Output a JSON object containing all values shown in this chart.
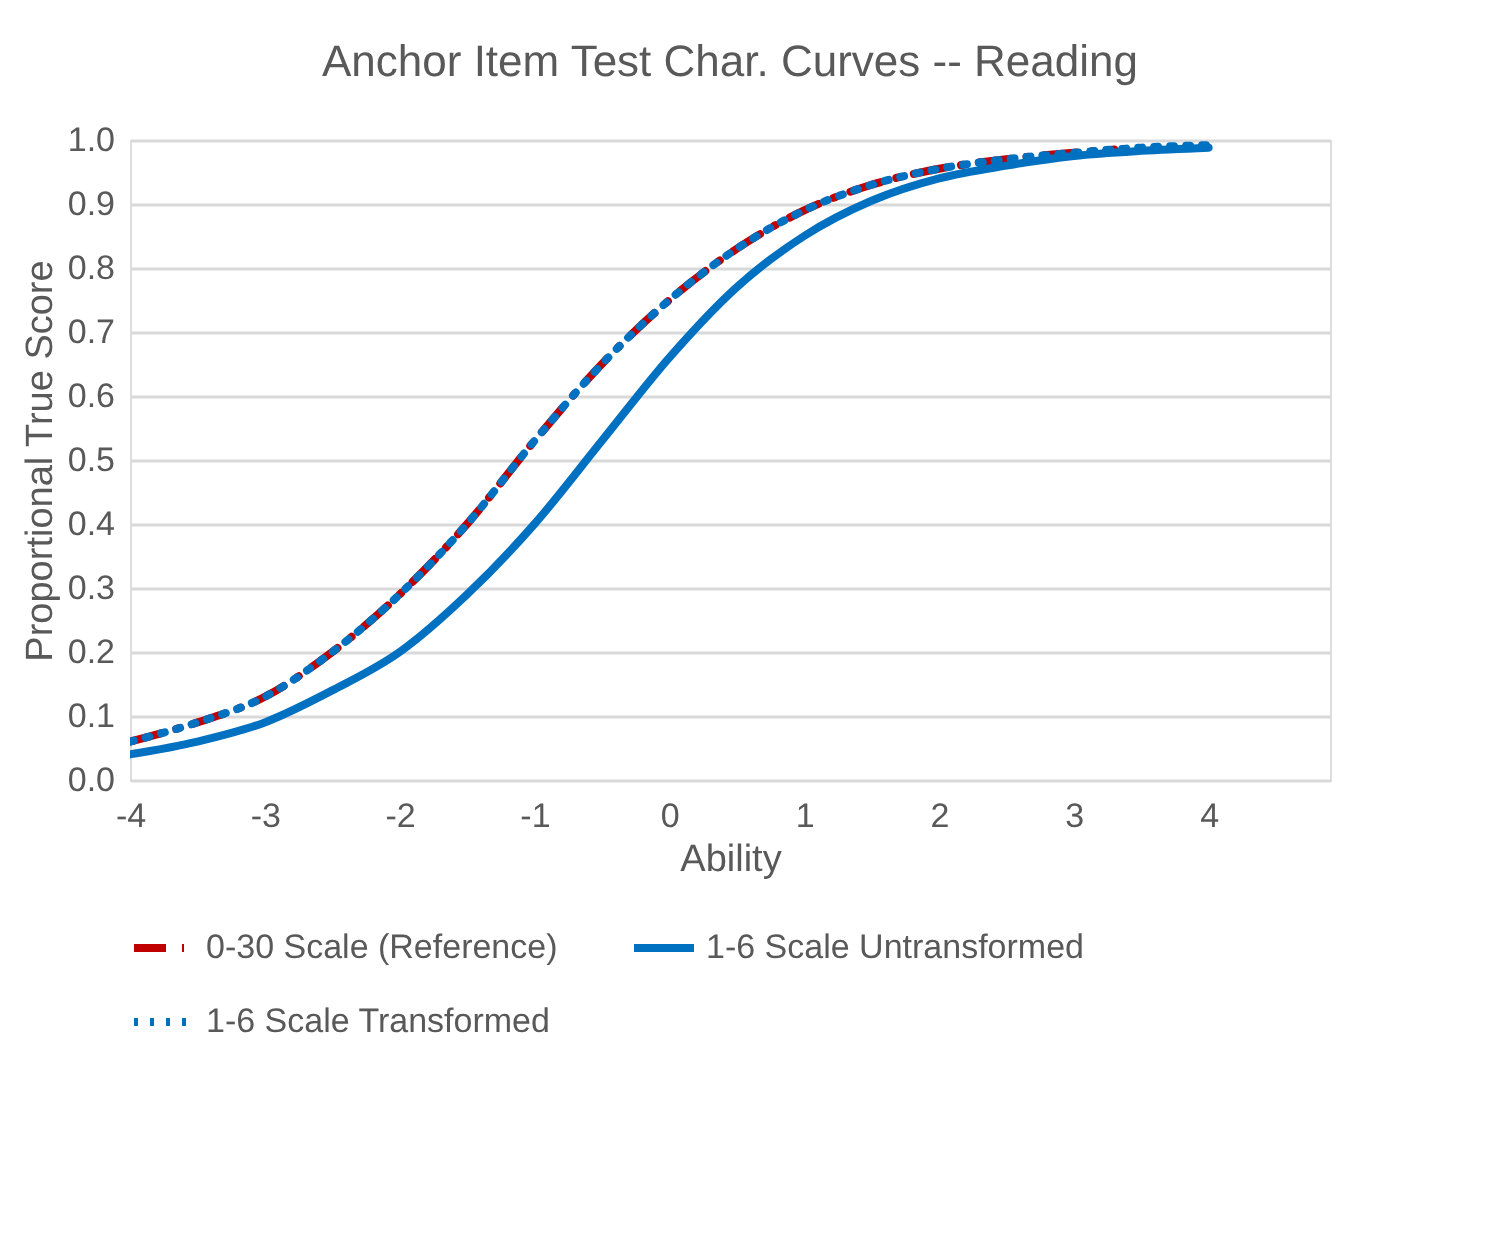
{
  "chart_data": {
    "type": "line",
    "title": "Anchor Item Test Char. Curves -- Reading",
    "xlabel": "Ability",
    "ylabel": "Proportional True Score",
    "xlim": [
      -4,
      4.9
    ],
    "xticks": [
      -4,
      -3,
      -2,
      -1,
      0,
      1,
      2,
      3,
      4
    ],
    "ylim": [
      0,
      1
    ],
    "yticks": [
      {
        "value": 0,
        "label": "0.0"
      },
      0.1,
      0.2,
      0.3,
      0.4,
      0.5,
      0.6,
      0.7,
      0.8,
      0.9,
      {
        "value": 1,
        "label": "1.0"
      }
    ],
    "grid": "y",
    "legend": "bottom",
    "series": [
      {
        "name": "0-30 Scale (Reference)",
        "color": "#c00000",
        "line_style": "dashed",
        "x": [
          -4,
          -3.5,
          -3,
          -2.5,
          -2,
          -1.5,
          -1,
          -0.5,
          0,
          0.5,
          1,
          1.5,
          2,
          2.5,
          3,
          3.3
        ],
        "values": [
          0.06,
          0.09,
          0.13,
          0.2,
          0.29,
          0.4,
          0.53,
          0.65,
          0.75,
          0.83,
          0.89,
          0.93,
          0.955,
          0.97,
          0.98,
          0.985
        ]
      },
      {
        "name": "1-6 Scale Untransformed",
        "color": "#0070c0",
        "line_style": "solid",
        "x": [
          -4,
          -3.5,
          -3,
          -2.5,
          -2,
          -1.5,
          -1,
          -0.5,
          0,
          0.5,
          1,
          1.5,
          2,
          2.5,
          3,
          3.5,
          4
        ],
        "values": [
          0.04,
          0.06,
          0.09,
          0.14,
          0.2,
          0.29,
          0.4,
          0.53,
          0.66,
          0.77,
          0.85,
          0.905,
          0.94,
          0.96,
          0.975,
          0.983,
          0.988
        ]
      },
      {
        "name": "1-6 Scale Transformed",
        "color": "#0070c0",
        "line_style": "dotted",
        "x": [
          -4,
          -3.5,
          -3,
          -2.5,
          -2,
          -1.5,
          -1,
          -0.5,
          0,
          0.5,
          1,
          1.5,
          2,
          2.5,
          3,
          3.5,
          4
        ],
        "values": [
          0.06,
          0.09,
          0.13,
          0.2,
          0.29,
          0.4,
          0.53,
          0.65,
          0.75,
          0.83,
          0.89,
          0.93,
          0.955,
          0.97,
          0.98,
          0.988,
          0.992
        ]
      }
    ]
  }
}
